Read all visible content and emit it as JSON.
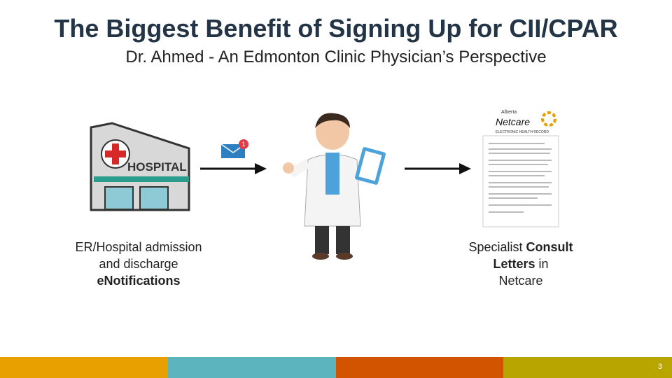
{
  "title": "The Biggest Benefit of Signing Up for CII/CPAR",
  "subtitle": "Dr. Ahmed - An Edmonton Clinic Physician’s Perspective",
  "hospital": {
    "sign": "HOSPITAL"
  },
  "email": {
    "badge": "1"
  },
  "netcare": {
    "brand_top": "Alberta",
    "brand": "Netcare",
    "brand_sub": "ELECTRONIC HEALTH RECORD"
  },
  "left_caption": {
    "line1": "ER/Hospital admission",
    "line2": "and discharge",
    "line3": "eNotifications"
  },
  "right_caption": {
    "pre": "Specialist ",
    "b1": "Consult",
    "b2": "Letters",
    "mid": " in",
    "line3": "Netcare"
  },
  "footer": {
    "colors": [
      "#E8A000",
      "#5BB4BE",
      "#D35400",
      "#B8A500"
    ],
    "page": "3"
  }
}
